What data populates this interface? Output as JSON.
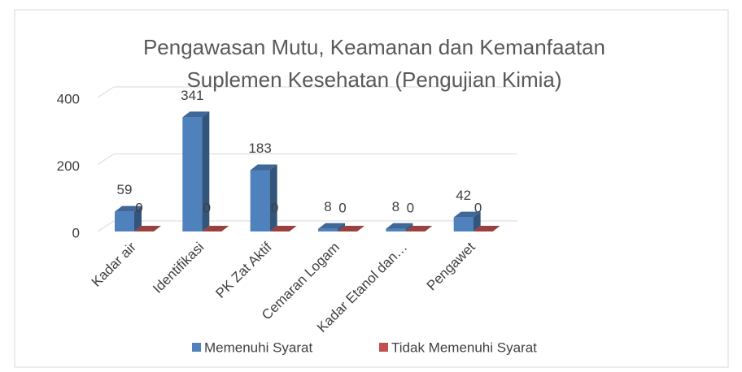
{
  "chart_data": {
    "type": "bar3d",
    "title": "Pengawasan Mutu, Keamanan dan Kemanfaatan Suplemen Kesehatan (Pengujian Kimia)",
    "categories": [
      "Kadar air",
      "Identifikasi",
      "PK Zat Aktif",
      "Cemaran Logam",
      "Kadar Etanol dan…",
      "Pengawet"
    ],
    "series": [
      {
        "name": "Memenuhi Syarat",
        "color": "#4f81bd",
        "values": [
          59,
          341,
          183,
          8,
          8,
          42
        ]
      },
      {
        "name": "Tidak Memenuhi Syarat",
        "color": "#c0504d",
        "values": [
          0,
          0,
          0,
          0,
          0,
          0
        ]
      }
    ],
    "ylim": [
      0,
      400
    ],
    "yticks": [
      0,
      200,
      400
    ],
    "grid": true,
    "legend": "bottom"
  }
}
